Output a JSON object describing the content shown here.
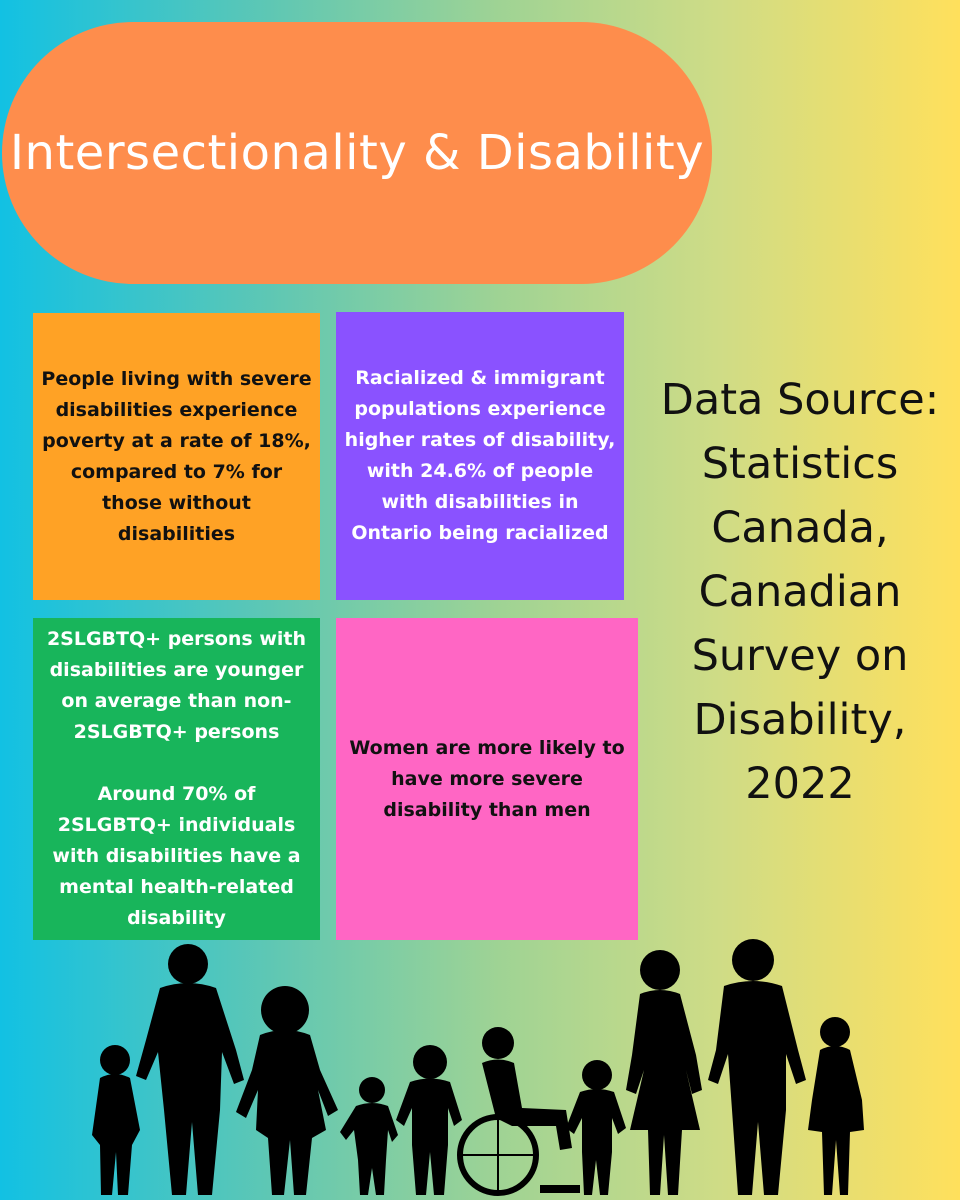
{
  "title": "Intersectionality & Disability",
  "boxes": {
    "poverty": "People living with severe disabilities experience poverty at a rate of 18%, compared to 7% for those without disabilities",
    "racialized": "Racialized & immigrant populations experience higher rates of disability, with 24.6% of people with disabilities in Ontario being racialized",
    "lgbtq_age": "2SLGBTQ+ persons with disabilities are younger on average than non-2SLGBTQ+ persons",
    "lgbtq_mental": "Around 70% of 2SLGBTQ+ individuals with disabilities have a mental health-related disability",
    "women": "Women are more likely to have more severe disability than men"
  },
  "source": "Data Source: Statistics Canada, Canadian Survey on Disability, 2022",
  "colors": {
    "title_pill": "#fe8d4c",
    "orange_box": "#ffa225",
    "purple_box": "#8a52ff",
    "green_box": "#18b55b",
    "pink_box": "#ff66c4",
    "silhouette": "#000000"
  },
  "illustration": "family-silhouette-icon"
}
